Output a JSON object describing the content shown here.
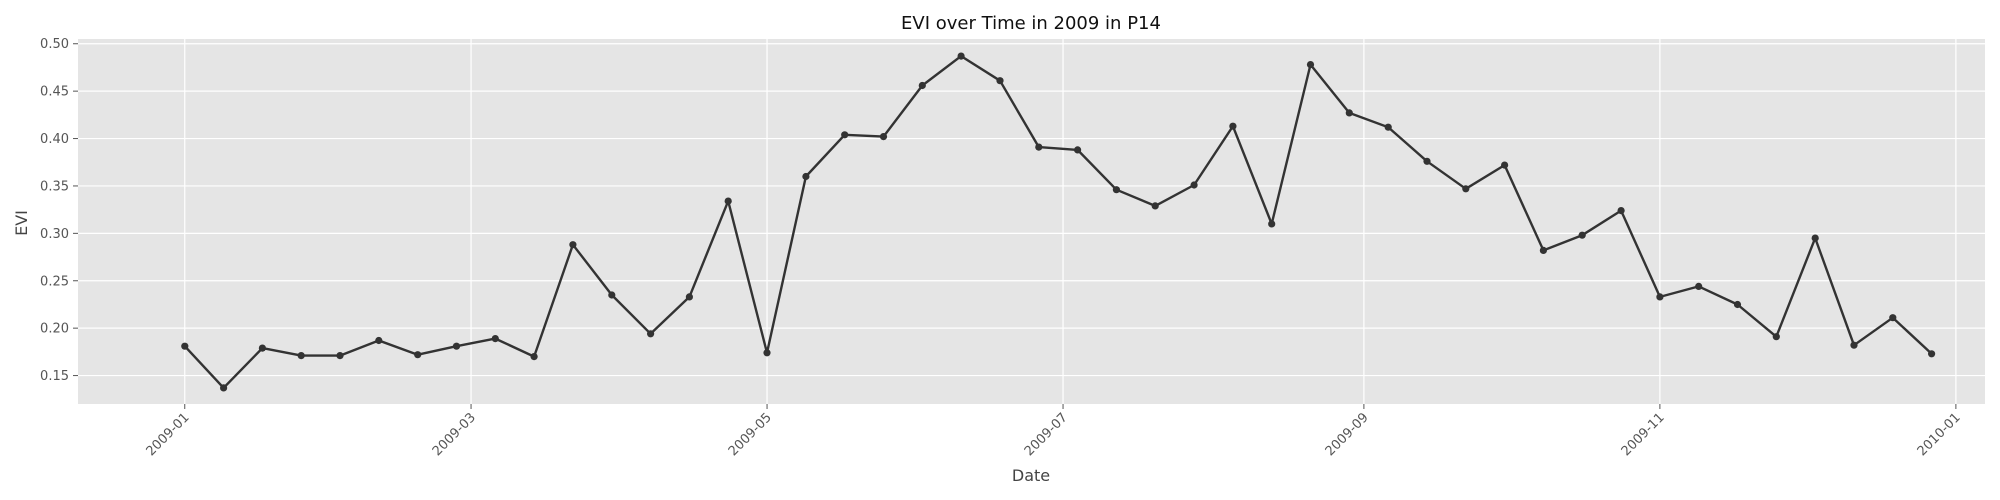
{
  "chart_data": {
    "type": "line",
    "title": "EVI over Time in 2009 in P14",
    "xlabel": "Date",
    "ylabel": "EVI",
    "x_ticks": [
      "2009-01",
      "2009-03",
      "2009-05",
      "2009-07",
      "2009-09",
      "2009-11",
      "2010-01"
    ],
    "x_tick_dates": [
      "2009-01-01",
      "2009-03-01",
      "2009-05-01",
      "2009-07-01",
      "2009-09-01",
      "2009-11-01",
      "2010-01-01"
    ],
    "y_ticks": [
      "0.15",
      "0.20",
      "0.25",
      "0.30",
      "0.35",
      "0.40",
      "0.45",
      "0.50"
    ],
    "ylim": [
      0.12,
      0.505
    ],
    "xlim": [
      "2008-12-10",
      "2010-01-07"
    ],
    "grid": true,
    "line_color": "#333333",
    "background_color": "#e5e5e5",
    "grid_color": "#ffffff",
    "series": [
      {
        "x": [
          "2009-01-01",
          "2009-01-09",
          "2009-01-17",
          "2009-01-25",
          "2009-02-02",
          "2009-02-10",
          "2009-02-18",
          "2009-02-26",
          "2009-03-06",
          "2009-03-14",
          "2009-03-22",
          "2009-03-30",
          "2009-04-07",
          "2009-04-15",
          "2009-04-23",
          "2009-05-01",
          "2009-05-09",
          "2009-05-17",
          "2009-05-25",
          "2009-06-02",
          "2009-06-10",
          "2009-06-18",
          "2009-06-26",
          "2009-07-04",
          "2009-07-12",
          "2009-07-20",
          "2009-07-28",
          "2009-08-05",
          "2009-08-13",
          "2009-08-21",
          "2009-08-29",
          "2009-09-06",
          "2009-09-14",
          "2009-09-22",
          "2009-09-30",
          "2009-10-08",
          "2009-10-16",
          "2009-10-24",
          "2009-11-01",
          "2009-11-09",
          "2009-11-17",
          "2009-11-25",
          "2009-12-03",
          "2009-12-11",
          "2009-12-19",
          "2009-12-27"
        ],
        "values": [
          0.181,
          0.137,
          0.179,
          0.171,
          0.171,
          0.187,
          0.172,
          0.181,
          0.189,
          0.17,
          0.288,
          0.235,
          0.194,
          0.233,
          0.334,
          0.174,
          0.36,
          0.404,
          0.402,
          0.456,
          0.487,
          0.461,
          0.391,
          0.388,
          0.346,
          0.329,
          0.351,
          0.413,
          0.31,
          0.478,
          0.427,
          0.412,
          0.376,
          0.347,
          0.372,
          0.282,
          0.298,
          0.324,
          0.233,
          0.244,
          0.225,
          0.191,
          0.295,
          0.182,
          0.211,
          0.173
        ]
      }
    ]
  }
}
